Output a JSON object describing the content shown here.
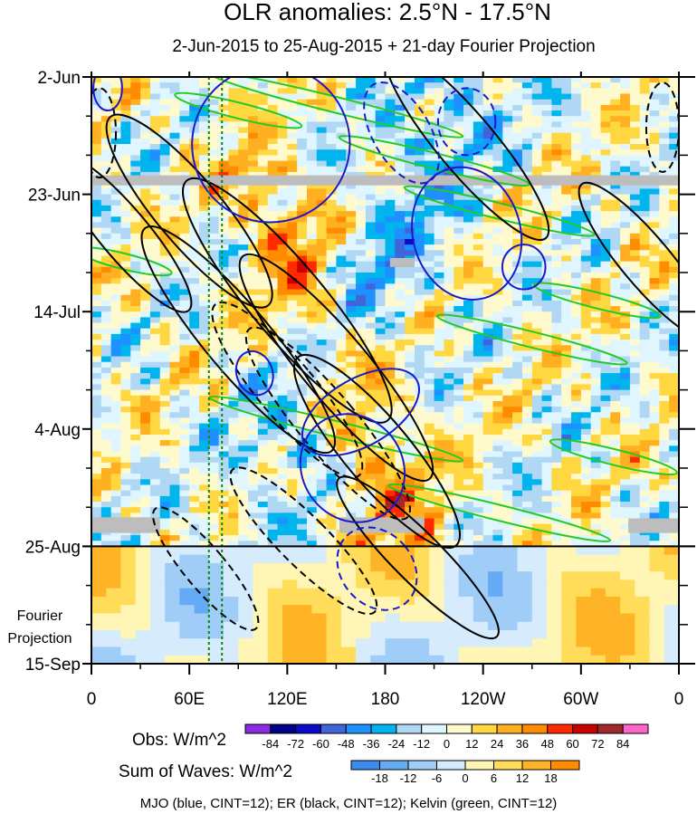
{
  "chart_data": {
    "type": "heatmap",
    "title": "OLR anomalies: 2.5°N - 17.5°N",
    "subtitle": "2-Jun-2015 to 25-Aug-2015 + 21-day Fourier Projection",
    "y_ticks": [
      "2-Jun",
      "23-Jun",
      "14-Jul",
      "4-Aug",
      "25-Aug",
      "15-Sep"
    ],
    "y_tick_days": [
      0,
      21,
      42,
      63,
      84,
      105
    ],
    "x_ticks": [
      "0",
      "60E",
      "120E",
      "180",
      "120W",
      "60W",
      "0"
    ],
    "x_tick_lon": [
      0,
      60,
      120,
      180,
      240,
      300,
      360
    ],
    "projection_label_lines": [
      "Fourier",
      "Projection"
    ],
    "obs_end_day": 84,
    "dotted_reference_lon": [
      72,
      80
    ],
    "missing_data_bands": [
      {
        "day_start": 17.6,
        "day_end": 19.4,
        "lon_start": 0,
        "lon_end": 360
      },
      {
        "day_start": 32.4,
        "day_end": 34.0,
        "lon_start": 183,
        "lon_end": 198
      },
      {
        "day_start": 78.8,
        "day_end": 81.6,
        "lon_start": 0,
        "lon_end": 42
      },
      {
        "day_start": 78.8,
        "day_end": 81.6,
        "lon_start": 152,
        "lon_end": 204
      },
      {
        "day_start": 79.0,
        "day_end": 81.6,
        "lon_start": 329,
        "lon_end": 360
      }
    ],
    "obs_colorbar": {
      "label": "Obs: W/m^2",
      "levels": [
        -84,
        -72,
        -60,
        -48,
        -36,
        -24,
        -12,
        0,
        12,
        24,
        36,
        48,
        60,
        72,
        84
      ],
      "colors": [
        "#8a2be2",
        "#00008b",
        "#0a0ac8",
        "#4065d8",
        "#1e90ff",
        "#00b4ee",
        "#b0d8f5",
        "#dff6ff",
        "#fffacd",
        "#ffd740",
        "#ffb020",
        "#ff8c00",
        "#ff2a00",
        "#c80000",
        "#a02828",
        "#ff66cc"
      ]
    },
    "waves_colorbar": {
      "label": "Sum of Waves: W/m^2",
      "levels": [
        -18,
        -12,
        -6,
        0,
        6,
        12,
        18
      ],
      "colors": [
        "#3c8cf0",
        "#64aaf5",
        "#a0ccf8",
        "#d6ebfc",
        "#fff5b4",
        "#ffdc5a",
        "#ffb428",
        "#ff8c00"
      ]
    },
    "contours": [
      {
        "wave": "MJO",
        "color": "blue",
        "cint": 12
      },
      {
        "wave": "ER",
        "color": "black",
        "cint": 12
      },
      {
        "wave": "Kelvin",
        "color": "green",
        "cint": 12
      }
    ],
    "contour_legend": "MJO (blue, CINT=12); ER (black, CINT=12); Kelvin (green, CINT=12)"
  }
}
